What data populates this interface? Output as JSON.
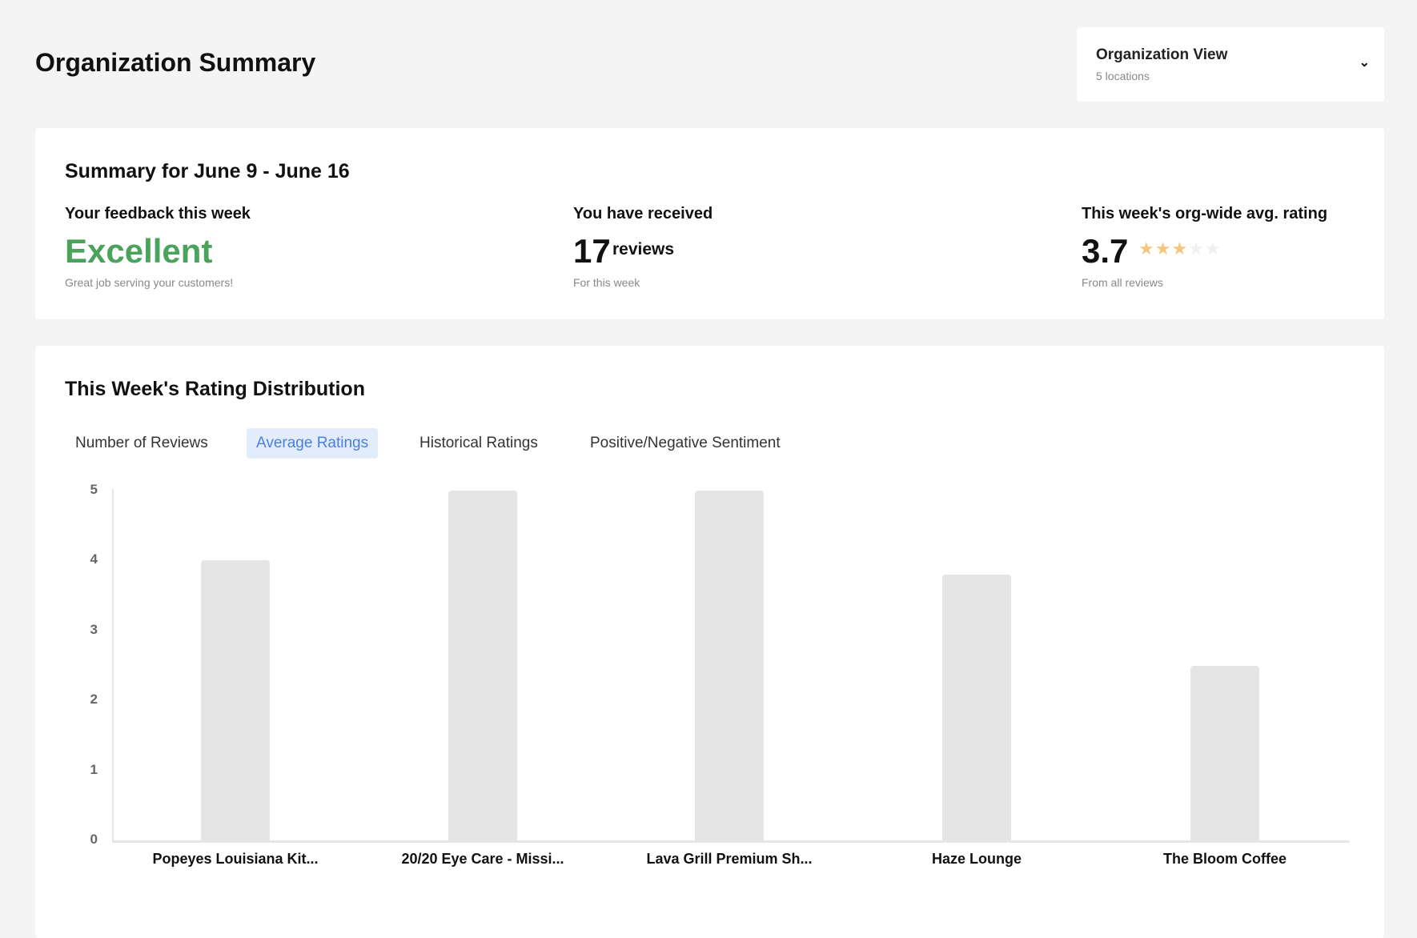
{
  "header": {
    "title": "Organization Summary",
    "view": {
      "label": "Organization View",
      "sub": "5 locations"
    }
  },
  "summary": {
    "title": "Summary for June 9 - June 16",
    "feedback": {
      "label": "Your feedback this week",
      "value": "Excellent",
      "sub": "Great job serving your customers!",
      "color": "#4aa35a"
    },
    "received": {
      "label": "You have received",
      "count": "17",
      "unit": "reviews",
      "sub": "For this week"
    },
    "rating": {
      "label": "This week's org-wide avg. rating",
      "value": "3.7",
      "stars_filled": 3,
      "stars_total": 5,
      "star_color": "#f4c77e",
      "sub": "From all reviews"
    }
  },
  "distribution": {
    "title": "This Week's Rating Distribution",
    "tabs": [
      {
        "label": "Number of Reviews"
      },
      {
        "label": "Average Ratings",
        "active": true
      },
      {
        "label": "Historical Ratings"
      },
      {
        "label": "Positive/Negative Sentiment"
      }
    ]
  },
  "chart_data": {
    "type": "bar",
    "categories": [
      "Popeyes Louisiana Kit...",
      "20/20 Eye Care - Missi...",
      "Lava Grill Premium Sh...",
      "Haze Lounge",
      "The Bloom Coffee"
    ],
    "values": [
      4,
      5,
      5,
      3.8,
      2.5
    ],
    "ylim": [
      0,
      5
    ],
    "yticks": [
      "0",
      "1",
      "2",
      "3",
      "4",
      "5"
    ],
    "bar_color": "#e5e5e5",
    "grid": false
  }
}
